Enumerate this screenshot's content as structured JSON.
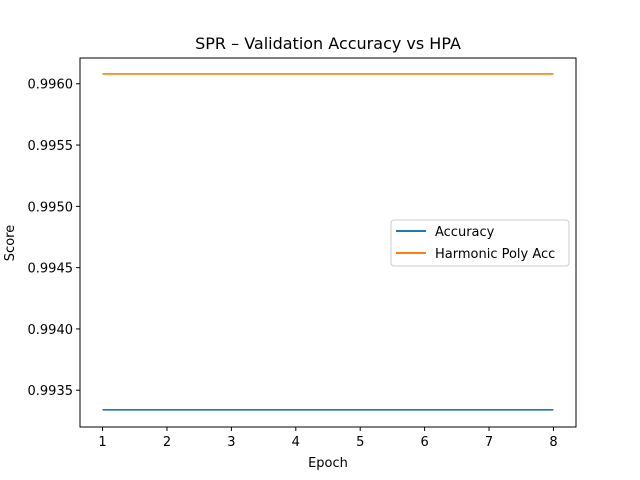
{
  "chart_data": {
    "type": "line",
    "title": "SPR – Validation Accuracy vs HPA",
    "xlabel": "Epoch",
    "ylabel": "Score",
    "x": [
      1,
      2,
      3,
      4,
      5,
      6,
      7,
      8
    ],
    "xticks": [
      "1",
      "2",
      "3",
      "4",
      "5",
      "6",
      "7",
      "8"
    ],
    "yticks": [
      "0.9935",
      "0.9940",
      "0.9945",
      "0.9950",
      "0.9955",
      "0.9960"
    ],
    "xlim": [
      0.65,
      8.35
    ],
    "ylim": [
      0.9932,
      0.99621
    ],
    "grid": false,
    "legend_position": "center-right",
    "series": [
      {
        "name": "Accuracy",
        "color": "#1f77b4",
        "values": [
          0.99334,
          0.99334,
          0.99334,
          0.99334,
          0.99334,
          0.99334,
          0.99334,
          0.99334
        ]
      },
      {
        "name": "Harmonic Poly Acc",
        "color": "#ff7f0e",
        "values": [
          0.99608,
          0.99608,
          0.99608,
          0.99608,
          0.99608,
          0.99608,
          0.99608,
          0.99608
        ]
      }
    ]
  }
}
